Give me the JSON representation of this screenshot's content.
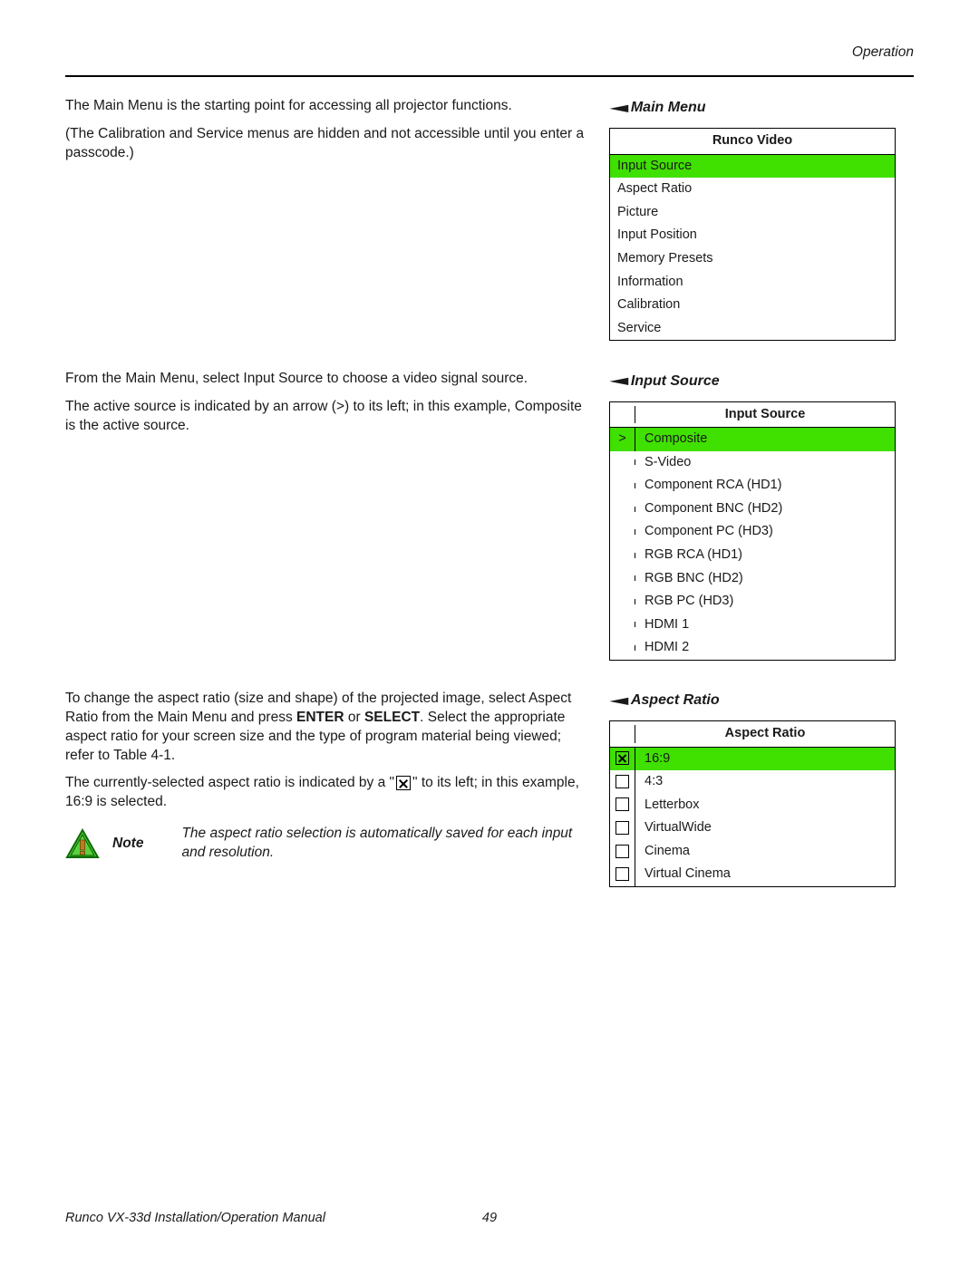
{
  "colors": {
    "highlight": "#40e000",
    "text": "#1a1a1a",
    "border": "#000000",
    "background": "#ffffff",
    "icon_border": "#0a6b00",
    "icon_fill": "#5cd040",
    "icon_inner": "#b9801a",
    "icon_inner_stroke": "#6b4a0f"
  },
  "header": {
    "section": "Operation"
  },
  "footer": {
    "manual_title": "Runco VX-33d Installation/Operation Manual",
    "page_number": "49"
  },
  "main_menu": {
    "title": "Main Menu",
    "menu_header": "Runco Video",
    "items": [
      {
        "label": "Input Source",
        "highlight": true
      },
      {
        "label": "Aspect Ratio",
        "highlight": false
      },
      {
        "label": "Picture",
        "highlight": false
      },
      {
        "label": "Input Position",
        "highlight": false
      },
      {
        "label": "Memory Presets",
        "highlight": false
      },
      {
        "label": "Information",
        "highlight": false
      },
      {
        "label": "Calibration",
        "highlight": false
      },
      {
        "label": "Service",
        "highlight": false
      }
    ],
    "para1": "The Main Menu is the starting point for accessing all projector functions.",
    "para2": "(The Calibration and Service menus are hidden and not accessible until you enter a passcode.)"
  },
  "input_source": {
    "title": "Input Source",
    "menu_header": "Input Source",
    "items": [
      {
        "label": "Composite",
        "indicator": ">",
        "highlight": true
      },
      {
        "label": "S-Video",
        "indicator": "",
        "highlight": false
      },
      {
        "label": "Component RCA (HD1)",
        "indicator": "",
        "highlight": false
      },
      {
        "label": "Component BNC (HD2)",
        "indicator": "",
        "highlight": false
      },
      {
        "label": "Component PC (HD3)",
        "indicator": "",
        "highlight": false
      },
      {
        "label": "RGB RCA (HD1)",
        "indicator": "",
        "highlight": false
      },
      {
        "label": "RGB BNC (HD2)",
        "indicator": "",
        "highlight": false
      },
      {
        "label": "RGB PC (HD3)",
        "indicator": "",
        "highlight": false
      },
      {
        "label": "HDMI 1",
        "indicator": "",
        "highlight": false
      },
      {
        "label": "HDMI 2",
        "indicator": "",
        "highlight": false
      }
    ],
    "para1": "From the Main Menu, select Input Source to choose a video signal source.",
    "para2": "The active source is indicated by an arrow (>) to its left; in this example, Composite is the active source."
  },
  "aspect_ratio": {
    "title": "Aspect Ratio",
    "menu_header": "Aspect Ratio",
    "items": [
      {
        "label": "16:9",
        "checked": true,
        "highlight": true
      },
      {
        "label": "4:3",
        "checked": false,
        "highlight": false
      },
      {
        "label": "Letterbox",
        "checked": false,
        "highlight": false
      },
      {
        "label": "VirtualWide",
        "checked": false,
        "highlight": false
      },
      {
        "label": "Cinema",
        "checked": false,
        "highlight": false
      },
      {
        "label": "Virtual Cinema",
        "checked": false,
        "highlight": false
      }
    ],
    "para1_a": "To change the aspect ratio (size and shape) of the projected image, select Aspect Ratio from the Main Menu and press ",
    "para1_enter": "ENTER",
    "para1_or": " or ",
    "para1_select": "SELECT",
    "para1_b": ". Select the appropriate aspect ratio for your screen size and the type of program material being viewed; refer to Table 4-1.",
    "para2_a": "The currently-selected aspect ratio is indicated by a \"",
    "para2_b": "\" to its left; in this example, 16:9 is selected.",
    "note_label": "Note",
    "note_text": "The aspect ratio selection is automatically saved for each input and resolution."
  }
}
